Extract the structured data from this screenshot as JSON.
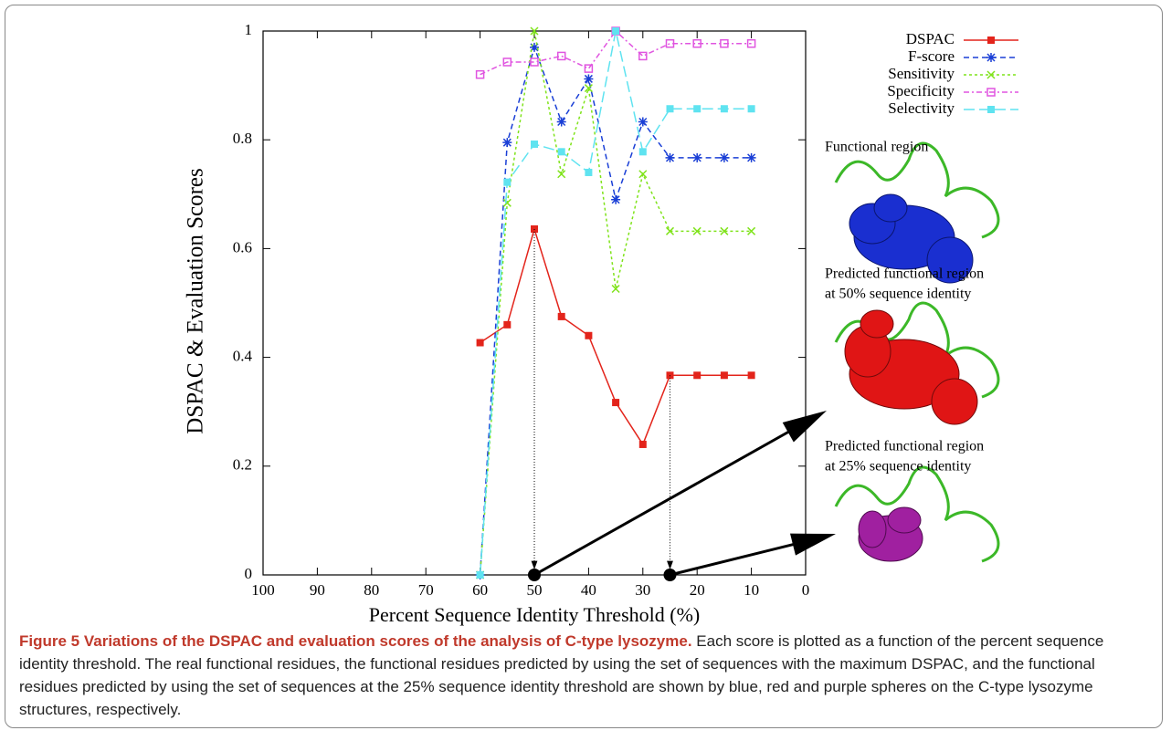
{
  "chart_data": {
    "type": "line",
    "x_label": "Percent Sequence Identity Threshold (%)",
    "y_label": "DSPAC & Evaluation Scores",
    "x": [
      60,
      55,
      50,
      45,
      40,
      35,
      30,
      25,
      20,
      15,
      10
    ],
    "series": [
      {
        "name": "DSPAC",
        "color": "#e3241b",
        "marker": "filled-square",
        "values": [
          0.427,
          0.46,
          0.636,
          0.475,
          0.44,
          0.317,
          0.24,
          0.367,
          0.367,
          0.367,
          0.367
        ]
      },
      {
        "name": "F-score",
        "color": "#1a3fd6",
        "marker": "asterisk",
        "values": [
          0,
          0.795,
          0.97,
          0.833,
          0.912,
          0.69,
          0.833,
          0.767,
          0.767,
          0.767,
          0.767
        ]
      },
      {
        "name": "Sensitivity",
        "color": "#7fe31a",
        "marker": "cross",
        "values": [
          0,
          0.684,
          1.0,
          0.737,
          0.895,
          0.526,
          0.737,
          0.632,
          0.632,
          0.632,
          0.632
        ]
      },
      {
        "name": "Specificity",
        "color": "#e055e0",
        "marker": "open-square",
        "values": [
          0.92,
          0.943,
          0.943,
          0.954,
          0.931,
          1.0,
          0.954,
          0.977,
          0.977,
          0.977,
          0.977
        ]
      },
      {
        "name": "Selectivity",
        "color": "#5fe3f0",
        "marker": "filled-square",
        "values": [
          0,
          0.722,
          0.792,
          0.778,
          0.74,
          1.0,
          0.778,
          0.857,
          0.857,
          0.857,
          0.857
        ]
      }
    ],
    "xlim": [
      100,
      0
    ],
    "xticks": [
      100,
      90,
      80,
      70,
      60,
      50,
      40,
      30,
      20,
      10,
      0
    ],
    "ylim": [
      0,
      1
    ],
    "yticks": [
      0,
      0.2,
      0.4,
      0.6,
      0.8,
      1
    ],
    "highlight_x": [
      50,
      25
    ],
    "legend": "top-right"
  },
  "panel_labels": [
    [
      "Functional region"
    ],
    [
      "Predicted functional region",
      "at 50% sequence identity"
    ],
    [
      "Predicted functional region",
      "at 25% sequence identity"
    ]
  ],
  "caption_title": "Figure 5 Variations of the DSPAC and evaluation scores of the analysis of C-type lysozyme.",
  "caption_text": "Each score is plotted as a function of the percent sequence identity threshold. The real functional residues, the functional residues predicted by using the set of sequences with the maximum DSPAC, and the functional residues predicted by using the set of sequences at the 25% sequence identity threshold are shown by blue, red and purple spheres on the C-type lysozyme structures, respectively."
}
